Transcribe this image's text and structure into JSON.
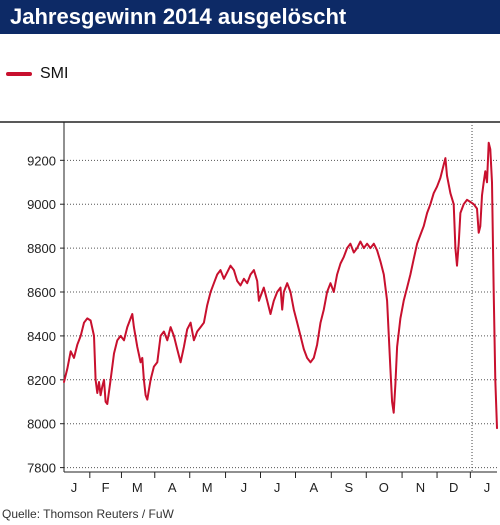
{
  "title": "Jahresgewinn 2014 ausgelöscht",
  "source": "Quelle: Thomson Reuters / FuW",
  "chart_data": {
    "type": "line",
    "title": "Jahresgewinn 2014 ausgelöscht",
    "legend_position": "top-left",
    "series": [
      {
        "name": "SMI",
        "color": "#c8102e",
        "points": [
          [
            0,
            8190
          ],
          [
            2,
            8250
          ],
          [
            4,
            8330
          ],
          [
            6,
            8300
          ],
          [
            8,
            8360
          ],
          [
            10,
            8400
          ],
          [
            12,
            8460
          ],
          [
            14,
            8480
          ],
          [
            16,
            8470
          ],
          [
            18,
            8400
          ],
          [
            19,
            8200
          ],
          [
            20,
            8140
          ],
          [
            21,
            8190
          ],
          [
            22,
            8130
          ],
          [
            23,
            8170
          ],
          [
            24,
            8200
          ],
          [
            25,
            8100
          ],
          [
            26,
            8090
          ],
          [
            28,
            8200
          ],
          [
            30,
            8320
          ],
          [
            32,
            8380
          ],
          [
            34,
            8400
          ],
          [
            36,
            8380
          ],
          [
            38,
            8440
          ],
          [
            40,
            8480
          ],
          [
            41,
            8500
          ],
          [
            42,
            8440
          ],
          [
            44,
            8350
          ],
          [
            46,
            8280
          ],
          [
            47,
            8300
          ],
          [
            48,
            8200
          ],
          [
            49,
            8130
          ],
          [
            50,
            8110
          ],
          [
            52,
            8200
          ],
          [
            54,
            8260
          ],
          [
            56,
            8280
          ],
          [
            58,
            8400
          ],
          [
            60,
            8420
          ],
          [
            62,
            8380
          ],
          [
            64,
            8440
          ],
          [
            66,
            8400
          ],
          [
            68,
            8340
          ],
          [
            70,
            8280
          ],
          [
            72,
            8350
          ],
          [
            74,
            8430
          ],
          [
            76,
            8460
          ],
          [
            78,
            8380
          ],
          [
            80,
            8420
          ],
          [
            82,
            8440
          ],
          [
            84,
            8460
          ],
          [
            86,
            8540
          ],
          [
            88,
            8600
          ],
          [
            90,
            8640
          ],
          [
            92,
            8680
          ],
          [
            94,
            8700
          ],
          [
            96,
            8660
          ],
          [
            98,
            8690
          ],
          [
            100,
            8720
          ],
          [
            102,
            8700
          ],
          [
            104,
            8650
          ],
          [
            106,
            8630
          ],
          [
            108,
            8660
          ],
          [
            110,
            8640
          ],
          [
            112,
            8680
          ],
          [
            114,
            8700
          ],
          [
            116,
            8650
          ],
          [
            117,
            8560
          ],
          [
            118,
            8580
          ],
          [
            120,
            8620
          ],
          [
            122,
            8560
          ],
          [
            124,
            8500
          ],
          [
            126,
            8560
          ],
          [
            128,
            8600
          ],
          [
            130,
            8620
          ],
          [
            131,
            8520
          ],
          [
            132,
            8600
          ],
          [
            134,
            8640
          ],
          [
            136,
            8600
          ],
          [
            138,
            8520
          ],
          [
            140,
            8460
          ],
          [
            142,
            8400
          ],
          [
            144,
            8340
          ],
          [
            146,
            8300
          ],
          [
            148,
            8280
          ],
          [
            150,
            8300
          ],
          [
            152,
            8360
          ],
          [
            154,
            8460
          ],
          [
            156,
            8520
          ],
          [
            158,
            8600
          ],
          [
            160,
            8640
          ],
          [
            162,
            8600
          ],
          [
            164,
            8680
          ],
          [
            166,
            8730
          ],
          [
            168,
            8760
          ],
          [
            170,
            8800
          ],
          [
            172,
            8820
          ],
          [
            174,
            8780
          ],
          [
            176,
            8800
          ],
          [
            178,
            8830
          ],
          [
            180,
            8800
          ],
          [
            182,
            8820
          ],
          [
            184,
            8800
          ],
          [
            186,
            8820
          ],
          [
            188,
            8790
          ],
          [
            190,
            8740
          ],
          [
            192,
            8680
          ],
          [
            194,
            8560
          ],
          [
            195,
            8400
          ],
          [
            196,
            8250
          ],
          [
            197,
            8100
          ],
          [
            198,
            8050
          ],
          [
            199,
            8180
          ],
          [
            200,
            8350
          ],
          [
            202,
            8480
          ],
          [
            204,
            8560
          ],
          [
            206,
            8620
          ],
          [
            208,
            8680
          ],
          [
            210,
            8750
          ],
          [
            212,
            8820
          ],
          [
            214,
            8860
          ],
          [
            216,
            8900
          ],
          [
            218,
            8960
          ],
          [
            220,
            9000
          ],
          [
            222,
            9050
          ],
          [
            224,
            9080
          ],
          [
            226,
            9120
          ],
          [
            228,
            9180
          ],
          [
            229,
            9210
          ],
          [
            230,
            9130
          ],
          [
            232,
            9050
          ],
          [
            234,
            9000
          ],
          [
            235,
            8800
          ],
          [
            236,
            8720
          ],
          [
            237,
            8820
          ],
          [
            238,
            8960
          ],
          [
            240,
            9000
          ],
          [
            242,
            9020
          ],
          [
            244,
            9010
          ],
          [
            246,
            9000
          ],
          [
            248,
            8980
          ],
          [
            249,
            8870
          ],
          [
            250,
            8900
          ],
          [
            251,
            9040
          ],
          [
            252,
            9100
          ],
          [
            253,
            9150
          ],
          [
            254,
            9100
          ],
          [
            255,
            9280
          ],
          [
            256,
            9250
          ],
          [
            257,
            9100
          ],
          [
            258,
            8600
          ],
          [
            259,
            8200
          ],
          [
            260,
            7980
          ]
        ]
      }
    ],
    "x_ticks": [
      {
        "label": "J",
        "x": 6
      },
      {
        "label": "F",
        "x": 25
      },
      {
        "label": "M",
        "x": 44
      },
      {
        "label": "A",
        "x": 65
      },
      {
        "label": "M",
        "x": 86
      },
      {
        "label": "J",
        "x": 108
      },
      {
        "label": "J",
        "x": 128
      },
      {
        "label": "A",
        "x": 150
      },
      {
        "label": "S",
        "x": 171
      },
      {
        "label": "O",
        "x": 192
      },
      {
        "label": "N",
        "x": 214
      },
      {
        "label": "D",
        "x": 234
      },
      {
        "label": "J",
        "x": 254
      }
    ],
    "xlim": [
      0,
      260
    ],
    "year_boundary_x": 245,
    "y_ticks": [
      7800,
      8000,
      8200,
      8400,
      8600,
      8800,
      9000,
      9200
    ],
    "ylim": [
      7780,
      9370
    ],
    "grid": "horizontal, dotted"
  }
}
